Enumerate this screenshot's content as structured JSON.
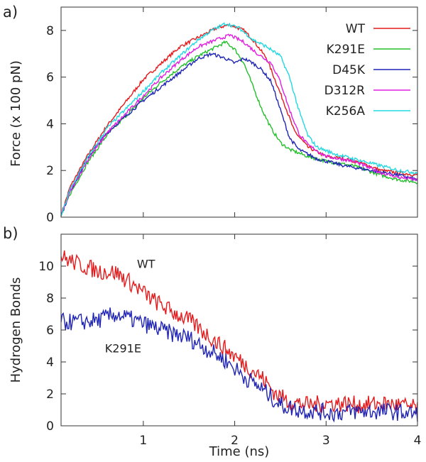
{
  "chart_data": [
    {
      "panel_label": "a)",
      "type": "line",
      "xlim": [
        0.1,
        4
      ],
      "ylim": [
        0,
        9
      ],
      "xticks": [
        1,
        2,
        3,
        4
      ],
      "yticks": [
        0,
        2,
        4,
        6,
        8
      ],
      "xlabel": "",
      "ylabel": "Force (x 100 pN)",
      "legend_position": "top-right",
      "series": [
        {
          "name": "WT",
          "color": "#e41a1c",
          "points": [
            [
              0.1,
              0.1
            ],
            [
              0.2,
              1.3
            ],
            [
              0.4,
              2.7
            ],
            [
              0.6,
              3.9
            ],
            [
              0.8,
              4.9
            ],
            [
              1.0,
              5.9
            ],
            [
              1.2,
              6.6
            ],
            [
              1.4,
              7.3
            ],
            [
              1.6,
              7.7
            ],
            [
              1.8,
              8.1
            ],
            [
              1.95,
              8.25
            ],
            [
              2.1,
              8.0
            ],
            [
              2.2,
              7.6
            ],
            [
              2.35,
              6.8
            ],
            [
              2.45,
              5.8
            ],
            [
              2.55,
              4.8
            ],
            [
              2.65,
              3.7
            ],
            [
              2.8,
              3.0
            ],
            [
              3.0,
              2.6
            ],
            [
              3.2,
              2.5
            ],
            [
              3.4,
              2.3
            ],
            [
              3.6,
              2.0
            ],
            [
              3.8,
              1.9
            ],
            [
              4.0,
              1.8
            ]
          ]
        },
        {
          "name": "K291E",
          "color": "#22c02a",
          "points": [
            [
              0.1,
              0.05
            ],
            [
              0.2,
              1.0
            ],
            [
              0.4,
              2.4
            ],
            [
              0.6,
              3.5
            ],
            [
              0.8,
              4.3
            ],
            [
              1.0,
              5.1
            ],
            [
              1.2,
              5.8
            ],
            [
              1.4,
              6.4
            ],
            [
              1.6,
              6.9
            ],
            [
              1.75,
              7.2
            ],
            [
              1.9,
              7.5
            ],
            [
              2.0,
              7.2
            ],
            [
              2.1,
              6.6
            ],
            [
              2.2,
              5.6
            ],
            [
              2.3,
              4.6
            ],
            [
              2.4,
              3.8
            ],
            [
              2.5,
              3.2
            ],
            [
              2.6,
              2.9
            ],
            [
              2.8,
              2.6
            ],
            [
              3.0,
              2.4
            ],
            [
              3.3,
              2.2
            ],
            [
              3.6,
              1.8
            ],
            [
              3.8,
              1.6
            ],
            [
              4.0,
              1.5
            ]
          ]
        },
        {
          "name": "D45K",
          "color": "#1f24b4",
          "points": [
            [
              0.1,
              0.05
            ],
            [
              0.2,
              1.1
            ],
            [
              0.4,
              2.6
            ],
            [
              0.6,
              3.6
            ],
            [
              0.8,
              4.3
            ],
            [
              1.0,
              5.0
            ],
            [
              1.2,
              5.6
            ],
            [
              1.4,
              6.2
            ],
            [
              1.6,
              6.8
            ],
            [
              1.75,
              7.0
            ],
            [
              1.9,
              6.8
            ],
            [
              2.0,
              6.6
            ],
            [
              2.1,
              6.8
            ],
            [
              2.2,
              6.6
            ],
            [
              2.3,
              6.3
            ],
            [
              2.4,
              5.8
            ],
            [
              2.5,
              4.6
            ],
            [
              2.6,
              3.4
            ],
            [
              2.7,
              2.9
            ],
            [
              2.9,
              2.5
            ],
            [
              3.2,
              2.2
            ],
            [
              3.5,
              2.0
            ],
            [
              3.8,
              1.8
            ],
            [
              4.0,
              1.6
            ]
          ]
        },
        {
          "name": "D312R",
          "color": "#e020e0",
          "points": [
            [
              0.1,
              0.05
            ],
            [
              0.2,
              1.1
            ],
            [
              0.4,
              2.5
            ],
            [
              0.6,
              3.6
            ],
            [
              0.8,
              4.4
            ],
            [
              1.0,
              5.2
            ],
            [
              1.2,
              6.0
            ],
            [
              1.4,
              6.7
            ],
            [
              1.6,
              7.3
            ],
            [
              1.8,
              7.6
            ],
            [
              1.95,
              7.8
            ],
            [
              2.1,
              7.5
            ],
            [
              2.25,
              7.0
            ],
            [
              2.4,
              6.6
            ],
            [
              2.5,
              5.8
            ],
            [
              2.6,
              4.6
            ],
            [
              2.7,
              3.6
            ],
            [
              2.8,
              3.1
            ],
            [
              3.0,
              2.6
            ],
            [
              3.3,
              2.4
            ],
            [
              3.6,
              1.9
            ],
            [
              3.8,
              1.7
            ],
            [
              4.0,
              1.6
            ]
          ]
        },
        {
          "name": "K256A",
          "color": "#22d8e0",
          "points": [
            [
              0.1,
              0.05
            ],
            [
              0.2,
              1.2
            ],
            [
              0.4,
              2.6
            ],
            [
              0.6,
              3.8
            ],
            [
              0.8,
              4.6
            ],
            [
              1.0,
              5.4
            ],
            [
              1.2,
              6.2
            ],
            [
              1.4,
              6.9
            ],
            [
              1.6,
              7.6
            ],
            [
              1.75,
              8.0
            ],
            [
              1.9,
              8.3
            ],
            [
              2.05,
              8.1
            ],
            [
              2.2,
              7.6
            ],
            [
              2.35,
              7.3
            ],
            [
              2.5,
              6.9
            ],
            [
              2.6,
              6.0
            ],
            [
              2.7,
              4.6
            ],
            [
              2.8,
              3.5
            ],
            [
              2.9,
              3.0
            ],
            [
              3.1,
              2.7
            ],
            [
              3.3,
              2.5
            ],
            [
              3.6,
              2.2
            ],
            [
              3.8,
              2.0
            ],
            [
              4.0,
              1.9
            ]
          ]
        }
      ]
    },
    {
      "panel_label": "b)",
      "type": "line",
      "xlim": [
        0.1,
        4
      ],
      "ylim": [
        0,
        12
      ],
      "xticks": [
        1,
        2,
        3,
        4
      ],
      "yticks": [
        0,
        2,
        4,
        6,
        8,
        10
      ],
      "xlabel": "Time (ns)",
      "ylabel": "Hydrogen Bonds",
      "series": [
        {
          "name": "WT",
          "color": "#e41a1c",
          "points": [
            [
              0.1,
              10.6
            ],
            [
              0.3,
              10.1
            ],
            [
              0.5,
              9.7
            ],
            [
              0.7,
              9.6
            ],
            [
              0.9,
              8.8
            ],
            [
              1.1,
              7.9
            ],
            [
              1.3,
              7.2
            ],
            [
              1.5,
              6.6
            ],
            [
              1.7,
              5.7
            ],
            [
              1.9,
              4.8
            ],
            [
              2.1,
              3.9
            ],
            [
              2.3,
              3.0
            ],
            [
              2.45,
              2.0
            ],
            [
              2.6,
              1.5
            ],
            [
              2.8,
              1.3
            ],
            [
              3.0,
              1.4
            ],
            [
              3.2,
              1.4
            ],
            [
              3.4,
              1.3
            ],
            [
              3.6,
              1.4
            ],
            [
              3.8,
              1.3
            ],
            [
              4.0,
              1.1
            ]
          ]
        },
        {
          "name": "K291E",
          "color": "#1f24b4",
          "points": [
            [
              0.1,
              6.5
            ],
            [
              0.3,
              6.5
            ],
            [
              0.5,
              6.6
            ],
            [
              0.7,
              7.0
            ],
            [
              0.9,
              6.6
            ],
            [
              1.1,
              6.2
            ],
            [
              1.3,
              5.8
            ],
            [
              1.5,
              5.5
            ],
            [
              1.7,
              4.8
            ],
            [
              1.9,
              4.1
            ],
            [
              2.1,
              3.1
            ],
            [
              2.3,
              2.3
            ],
            [
              2.5,
              1.3
            ],
            [
              2.7,
              1.0
            ],
            [
              2.9,
              0.9
            ],
            [
              3.1,
              0.8
            ],
            [
              3.3,
              0.9
            ],
            [
              3.5,
              0.9
            ],
            [
              3.7,
              0.9
            ],
            [
              3.9,
              0.8
            ],
            [
              4.0,
              0.7
            ]
          ]
        }
      ],
      "annotations": [
        {
          "text": "WT",
          "x": 0.93,
          "y": 9.9
        },
        {
          "text": "K291E",
          "x": 0.58,
          "y": 4.6
        }
      ]
    }
  ]
}
